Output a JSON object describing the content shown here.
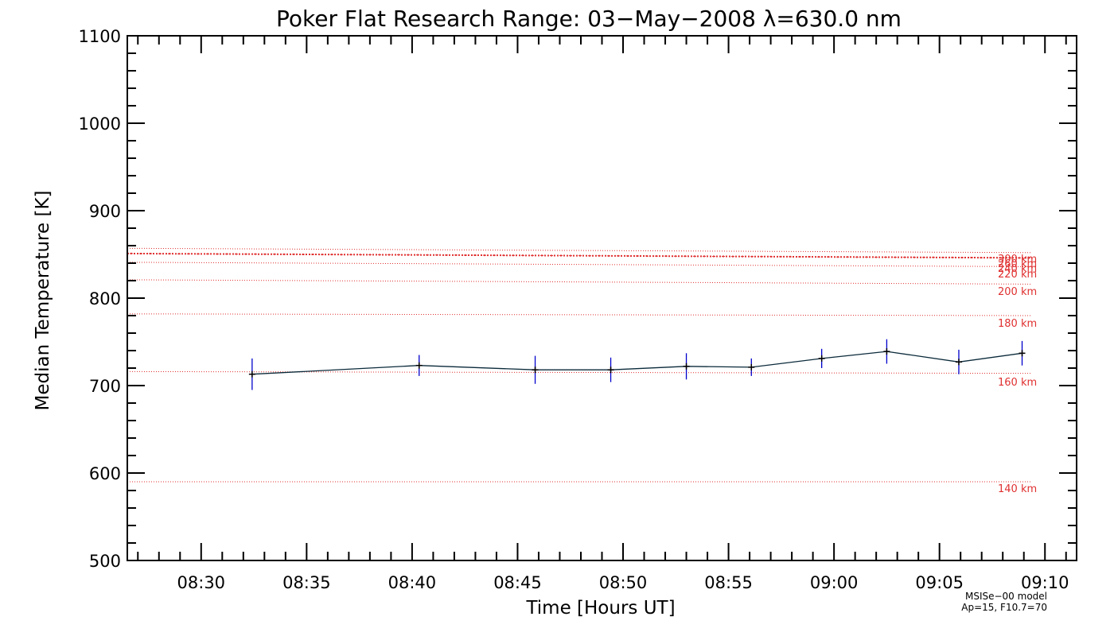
{
  "chart_data": {
    "type": "line",
    "title": "Poker Flat Research Range: 03−May−2008 λ=630.0 nm",
    "xlabel": "Time [Hours UT]",
    "ylabel": "Median Temperature [K]",
    "xlim": [
      "08:26:30",
      "09:11:30"
    ],
    "ylim": [
      500,
      1100
    ],
    "x_ticks": [
      "08:30",
      "08:35",
      "08:40",
      "08:45",
      "08:50",
      "08:55",
      "09:00",
      "09:05",
      "09:10"
    ],
    "y_ticks": [
      500,
      600,
      700,
      800,
      900,
      1000,
      1100
    ],
    "series": [
      {
        "x": [
          "08:32:25",
          "08:40:20",
          "08:45:50",
          "08:49:25",
          "08:53:00",
          "08:56:05",
          "08:59:25",
          "09:02:30",
          "09:05:55",
          "09:08:55"
        ],
        "y": [
          713,
          723,
          718,
          718,
          722,
          721,
          731,
          739,
          727,
          737
        ],
        "error": [
          18,
          12,
          16,
          14,
          15,
          10,
          11,
          14,
          14,
          14
        ],
        "color": "#0a2a3a",
        "error_color": "#0000cc"
      }
    ],
    "model_lines": [
      {
        "label": "300 km",
        "y": [
          851,
          846
        ]
      },
      {
        "label": "260 km",
        "y": [
          857,
          852
        ]
      },
      {
        "label": "240 km",
        "y": [
          841,
          836
        ]
      },
      {
        "label": "220 km",
        "y": [
          821,
          816
        ]
      },
      {
        "label": "200 km",
        "y": [
          782,
          780
        ]
      },
      {
        "label": "180 km",
        "y": [
          716,
          714
        ]
      },
      {
        "label": "160 km",
        "y": [
          590,
          590
        ]
      }
    ],
    "model_label_texts": [
      "300 km",
      "260 km",
      "240 km",
      "220 km",
      "200 km",
      "180 km",
      "160 km",
      "140 km"
    ],
    "model_color": "#e03030",
    "model_note": [
      "MSISe−00 model",
      "Ap=15, F10.7=70"
    ],
    "grid": false
  }
}
